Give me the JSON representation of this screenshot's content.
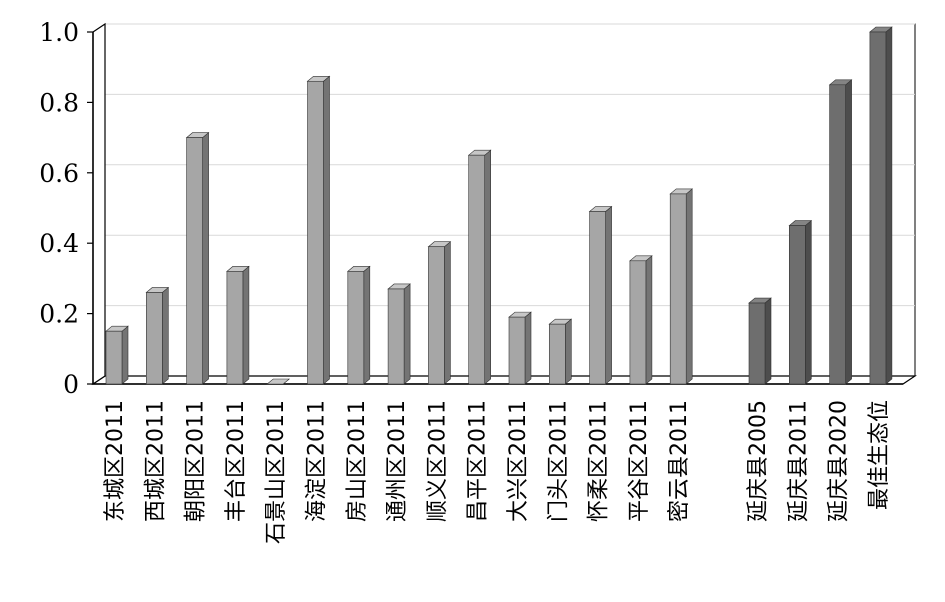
{
  "chart_data": {
    "type": "bar",
    "categories": [
      "东城区2011",
      "西城区2011",
      "朝阳区2011",
      "丰台区2011",
      "石景山区2011",
      "海淀区2011",
      "房山区2011",
      "通州区2011",
      "顺义区2011",
      "昌平区2011",
      "大兴区2011",
      "门头区2011",
      "怀柔区2011",
      "平谷区2011",
      "密云县2011",
      "延庆县2005",
      "延庆县2011",
      "延庆县2020",
      "最佳生态位"
    ],
    "values": [
      0.15,
      0.26,
      0.7,
      0.32,
      0.0,
      0.86,
      0.32,
      0.27,
      0.39,
      0.65,
      0.19,
      0.17,
      0.49,
      0.35,
      0.54,
      0.23,
      0.45,
      0.85,
      1.0
    ],
    "groups": [
      "district",
      "district",
      "district",
      "district",
      "district",
      "district",
      "district",
      "district",
      "district",
      "district",
      "district",
      "district",
      "district",
      "district",
      "district",
      "yanqing",
      "yanqing",
      "yanqing",
      "yanqing"
    ],
    "colors": {
      "district": "#a6a6a6",
      "yanqing": "#6e6e6e"
    },
    "yticks": [
      "0",
      "0.2",
      "0.4",
      "0.6",
      "0.8",
      "1.0"
    ],
    "ylim": [
      0,
      1.0
    ],
    "grid": true,
    "style": "3d"
  }
}
